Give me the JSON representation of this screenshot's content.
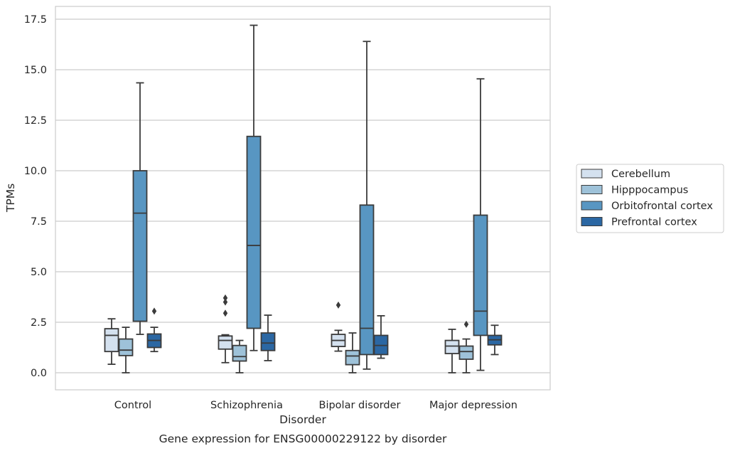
{
  "chart_data": {
    "type": "box",
    "caption": "Gene expression for ENSG00000229122 by disorder",
    "xlabel": "Disorder",
    "ylabel": "TPMs",
    "ylim": [
      -0.8,
      18.1
    ],
    "yticks": [
      0.0,
      2.5,
      5.0,
      7.5,
      10.0,
      12.5,
      15.0,
      17.5
    ],
    "ytick_labels": [
      "0.0",
      "2.5",
      "5.0",
      "7.5",
      "10.0",
      "12.5",
      "15.0",
      "17.5"
    ],
    "grid": "horizontal",
    "legend_position": "right",
    "categories": [
      "Control",
      "Schizophrenia",
      "Bipolar disorder",
      "Major depression"
    ],
    "series": [
      {
        "name": "Cerebellum",
        "color": "#d4e1ef",
        "boxes": [
          {
            "whislo": 0.42,
            "q1": 1.05,
            "med": 1.85,
            "q3": 2.18,
            "whishi": 2.67,
            "fliers": []
          },
          {
            "whislo": 0.5,
            "q1": 1.17,
            "med": 1.6,
            "q3": 1.82,
            "whishi": 1.88,
            "fliers": [
              2.95,
              3.5,
              3.7
            ]
          },
          {
            "whislo": 1.07,
            "q1": 1.3,
            "med": 1.6,
            "q3": 1.9,
            "whishi": 2.1,
            "fliers": [
              3.35
            ]
          },
          {
            "whislo": 0.0,
            "q1": 0.95,
            "med": 1.32,
            "q3": 1.6,
            "whishi": 2.15,
            "fliers": []
          }
        ]
      },
      {
        "name": "Hipppocampus",
        "color": "#9ec2d9",
        "boxes": [
          {
            "whislo": 0.0,
            "q1": 0.85,
            "med": 1.12,
            "q3": 1.67,
            "whishi": 2.25,
            "fliers": []
          },
          {
            "whislo": 0.0,
            "q1": 0.58,
            "med": 0.8,
            "q3": 1.35,
            "whishi": 1.6,
            "fliers": []
          },
          {
            "whislo": 0.0,
            "q1": 0.4,
            "med": 0.83,
            "q3": 1.1,
            "whishi": 1.97,
            "fliers": []
          },
          {
            "whislo": 0.0,
            "q1": 0.67,
            "med": 1.05,
            "q3": 1.32,
            "whishi": 1.67,
            "fliers": [
              2.4
            ]
          }
        ]
      },
      {
        "name": "Orbitofrontal cortex",
        "color": "#5896c2",
        "boxes": [
          {
            "whislo": 1.9,
            "q1": 2.55,
            "med": 7.9,
            "q3": 10.0,
            "whishi": 14.35,
            "fliers": []
          },
          {
            "whislo": 1.1,
            "q1": 2.2,
            "med": 6.3,
            "q3": 11.7,
            "whishi": 17.2,
            "fliers": []
          },
          {
            "whislo": 0.18,
            "q1": 0.9,
            "med": 2.2,
            "q3": 8.3,
            "whishi": 16.4,
            "fliers": []
          },
          {
            "whislo": 0.12,
            "q1": 1.85,
            "med": 3.05,
            "q3": 7.8,
            "whishi": 14.55,
            "fliers": []
          }
        ]
      },
      {
        "name": "Prefrontal cortex",
        "color": "#2b67a3",
        "boxes": [
          {
            "whislo": 1.05,
            "q1": 1.25,
            "med": 1.6,
            "q3": 1.92,
            "whishi": 2.25,
            "fliers": [
              3.05
            ]
          },
          {
            "whislo": 0.6,
            "q1": 1.1,
            "med": 1.47,
            "q3": 1.97,
            "whishi": 2.85,
            "fliers": []
          },
          {
            "whislo": 0.72,
            "q1": 0.9,
            "med": 1.35,
            "q3": 1.85,
            "whishi": 2.82,
            "fliers": []
          },
          {
            "whislo": 0.9,
            "q1": 1.38,
            "med": 1.63,
            "q3": 1.85,
            "whishi": 2.35,
            "fliers": []
          }
        ]
      }
    ]
  }
}
